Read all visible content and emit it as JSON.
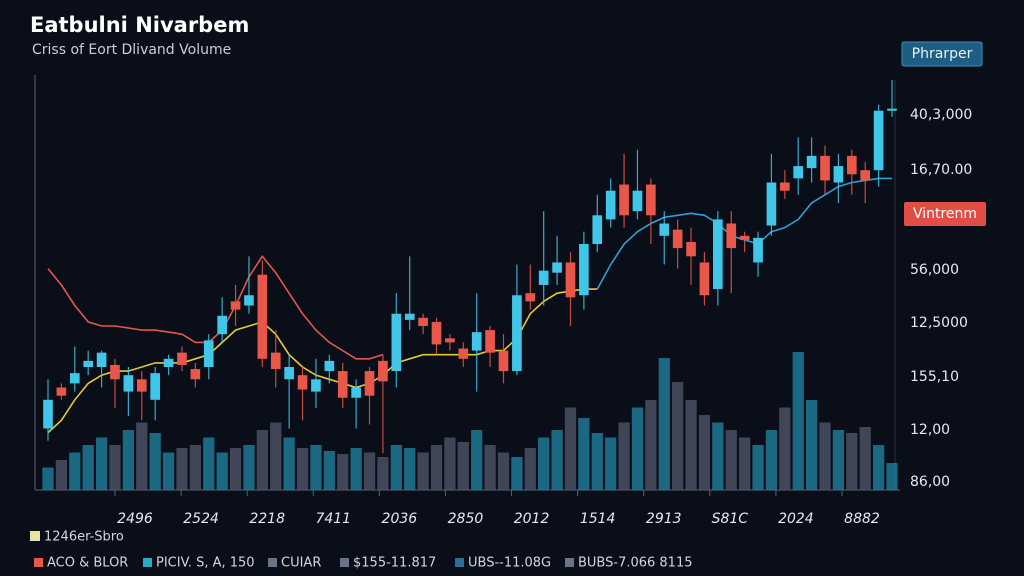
{
  "chart_data": {
    "type": "candlestick",
    "title": "Eatbulni Nivarbem",
    "subtitle": "Criss of Eort Dlivand Volume",
    "button": "Phrarper",
    "badge": "Vintrenm",
    "y_labels": [
      "40,3,000",
      "16,70.00",
      "56,000",
      "12,5000",
      "155,10",
      "12,00",
      "86,00"
    ],
    "x_labels": [
      "2496",
      "2524",
      "2218",
      "7411",
      "2036",
      "2850",
      "2012",
      "1514",
      "2913",
      "S81C",
      "2024",
      "8882"
    ],
    "legend_title": "1246er-Sbro",
    "legend": [
      {
        "label": "ACO & BLOR",
        "color": "#e8574a"
      },
      {
        "label": "PICIV. S, A, 150",
        "color": "#2aa7c9"
      },
      {
        "label": "CUIAR",
        "color": "#6b7487"
      },
      {
        "label": "$155-11.817",
        "color": "#6b7487"
      },
      {
        "label": "UBS--11.08G",
        "color": "#2a6f9a"
      },
      {
        "label": "BUBS-7.066 8115",
        "color": "#6b7487"
      }
    ],
    "up_color": "#3fc6e8",
    "down_color": "#e8574a",
    "ylim": [
      0,
      100
    ],
    "open": [
      15,
      25,
      26,
      30,
      30,
      30.5,
      24,
      27,
      22,
      30,
      33.5,
      29.5,
      30,
      38,
      46,
      45,
      52.5,
      33.5,
      27,
      28,
      24,
      29,
      29,
      22.5,
      29,
      31.5,
      29,
      41.5,
      42,
      41,
      37,
      34.5,
      34,
      39,
      34,
      29,
      48,
      50,
      53,
      55.5,
      47.5,
      60,
      66,
      74.5,
      68,
      74.5,
      62,
      63.5,
      60.5,
      55.5,
      49,
      65,
      62,
      55.5,
      64.5,
      75,
      76,
      78.5,
      81.5,
      75,
      81.5,
      78,
      78,
      92.5
    ],
    "high": [
      27,
      26,
      35,
      34,
      34,
      32,
      30,
      29,
      30,
      33,
      35,
      31,
      38,
      47,
      50,
      57,
      56,
      39,
      33,
      30,
      32,
      33,
      31,
      27,
      30,
      33,
      48,
      57,
      43,
      42,
      38,
      36,
      48,
      40,
      38,
      55,
      55,
      68,
      62,
      58,
      63,
      72,
      76,
      82,
      83,
      76,
      68,
      66,
      64,
      58,
      68,
      68,
      63,
      63,
      82,
      78,
      86,
      86,
      84,
      82,
      83,
      80,
      94,
      100
    ],
    "low": [
      12,
      22,
      24,
      28,
      25,
      20,
      18,
      17,
      17,
      28,
      29,
      25,
      27,
      36,
      40,
      43,
      30,
      25,
      15,
      17,
      20,
      26,
      20,
      15,
      16,
      9,
      25,
      39,
      38,
      33,
      34,
      30,
      24,
      30,
      26,
      28,
      44,
      45,
      50,
      40,
      44,
      58,
      64,
      64,
      66,
      60,
      55,
      54,
      50,
      45,
      45,
      48,
      58,
      52,
      62,
      71,
      72,
      75,
      72,
      70,
      72,
      70,
      74,
      91
    ],
    "close": [
      22,
      23,
      28.5,
      31.5,
      33.5,
      27,
      28,
      24,
      28.5,
      32,
      30.5,
      27,
      36.5,
      42.5,
      44,
      47.5,
      32,
      29.5,
      30,
      24.5,
      27,
      31.5,
      22.5,
      25,
      23,
      26.5,
      43,
      43,
      40,
      35.5,
      36,
      32,
      38.5,
      33.5,
      29,
      47.5,
      46,
      53.5,
      55.5,
      47,
      60,
      67,
      73,
      67,
      73,
      67,
      65,
      59,
      57,
      47.5,
      66,
      59,
      61,
      61.5,
      75,
      73,
      79,
      81.5,
      75.5,
      79,
      77,
      75.5,
      92.5,
      93
    ],
    "overlays": [
      {
        "color": "#e0584e",
        "values": [
          54,
          50,
          45,
          41,
          40,
          40,
          39.5,
          39,
          39,
          38.5,
          38,
          36,
          36,
          39,
          45,
          52,
          57,
          53,
          48,
          43,
          39,
          36,
          34,
          32,
          32,
          33,
          null,
          null,
          null,
          null,
          null,
          null,
          null,
          null,
          null,
          null,
          null,
          null,
          null,
          null,
          null,
          null,
          null,
          null,
          null,
          null,
          null,
          null,
          null,
          null,
          null,
          null,
          null,
          null,
          null,
          null,
          null,
          null,
          null,
          null,
          null,
          null,
          null,
          null
        ]
      },
      {
        "color": "#e7c83a",
        "values": [
          14,
          17,
          22,
          26,
          28,
          29,
          29,
          30,
          31,
          31,
          31,
          32,
          33,
          36,
          39,
          40,
          41,
          38,
          33,
          30,
          28,
          27,
          26,
          25,
          26,
          28,
          31,
          32,
          33,
          33,
          33,
          33,
          33,
          34,
          34,
          37,
          43,
          46,
          48,
          48.5,
          49,
          49,
          null,
          null,
          null,
          null,
          null,
          null,
          null,
          null,
          null,
          null,
          null,
          null,
          null,
          null,
          null,
          null,
          null,
          null,
          null,
          null,
          null,
          null
        ]
      },
      {
        "color": "#2f9fd6",
        "values": [
          null,
          null,
          null,
          null,
          null,
          null,
          null,
          null,
          null,
          null,
          null,
          null,
          null,
          null,
          null,
          null,
          null,
          null,
          null,
          null,
          null,
          null,
          null,
          null,
          null,
          null,
          null,
          null,
          null,
          null,
          null,
          null,
          null,
          null,
          null,
          null,
          null,
          null,
          null,
          null,
          null,
          49,
          55,
          60,
          63,
          65,
          66.5,
          67,
          67.5,
          67,
          65,
          62,
          61,
          60,
          63,
          64,
          66,
          70,
          72,
          74,
          75,
          75.5,
          76,
          76
        ]
      }
    ],
    "volume": [
      15,
      20,
      25,
      30,
      35,
      30,
      40,
      45,
      38,
      25,
      28,
      30,
      35,
      25,
      28,
      30,
      40,
      45,
      35,
      28,
      30,
      26,
      24,
      28,
      25,
      22,
      30,
      28,
      25,
      30,
      35,
      32,
      40,
      30,
      25,
      22,
      28,
      35,
      40,
      55,
      48,
      38,
      35,
      45,
      55,
      60,
      88,
      72,
      60,
      50,
      45,
      40,
      35,
      30,
      40,
      55,
      92,
      60,
      45,
      40,
      38,
      42,
      30,
      18
    ],
    "vlim": [
      0,
      100
    ]
  }
}
